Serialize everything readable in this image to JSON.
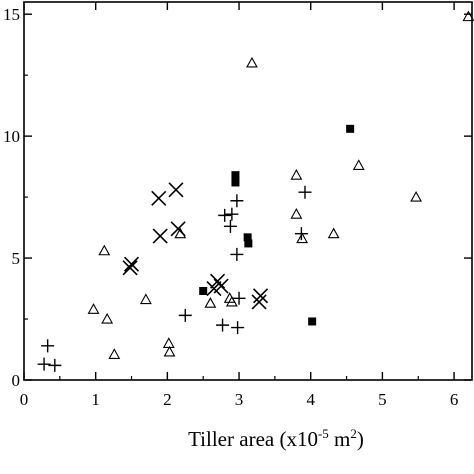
{
  "chart_data": {
    "type": "scatter",
    "title": "",
    "xlabel": "Tiller area (x10",
    "xlabel_exp": "-5",
    "xlabel_unit": " m",
    "xlabel_unit_exp": "2",
    "xlabel_close": ")",
    "ylabel": "",
    "xlim": [
      0,
      6.25
    ],
    "ylim": [
      0,
      15.5
    ],
    "x_ticks": [
      0,
      1,
      2,
      3,
      4,
      5,
      6
    ],
    "y_ticks": [
      0,
      5,
      10,
      15
    ],
    "grid": false,
    "series": [
      {
        "marker": "triangle",
        "points": [
          [
            0.97,
            2.9
          ],
          [
            1.12,
            5.3
          ],
          [
            1.16,
            2.5
          ],
          [
            1.26,
            1.05
          ],
          [
            1.7,
            3.3
          ],
          [
            2.02,
            1.5
          ],
          [
            2.03,
            1.15
          ],
          [
            2.18,
            6.0
          ],
          [
            2.6,
            3.15
          ],
          [
            2.87,
            3.35
          ],
          [
            2.9,
            3.2
          ],
          [
            3.18,
            13.0
          ],
          [
            3.8,
            8.4
          ],
          [
            3.8,
            6.8
          ],
          [
            3.88,
            5.8
          ],
          [
            4.32,
            6.0
          ],
          [
            4.67,
            8.8
          ],
          [
            5.47,
            7.5
          ],
          [
            6.2,
            14.9
          ]
        ]
      },
      {
        "marker": "cross",
        "points": [
          [
            1.48,
            4.6
          ],
          [
            1.5,
            4.75
          ],
          [
            1.88,
            7.45
          ],
          [
            1.9,
            5.9
          ],
          [
            2.12,
            7.8
          ],
          [
            2.15,
            6.2
          ],
          [
            2.65,
            3.75
          ],
          [
            2.7,
            4.05
          ],
          [
            2.75,
            3.85
          ],
          [
            3.28,
            3.2
          ],
          [
            3.3,
            3.45
          ]
        ]
      },
      {
        "marker": "plus",
        "points": [
          [
            0.28,
            0.65
          ],
          [
            0.33,
            1.4
          ],
          [
            0.43,
            0.6
          ],
          [
            2.25,
            2.65
          ],
          [
            2.77,
            2.25
          ],
          [
            2.8,
            6.75
          ],
          [
            2.88,
            6.3
          ],
          [
            2.9,
            6.8
          ],
          [
            2.97,
            7.35
          ],
          [
            2.97,
            5.15
          ],
          [
            2.98,
            2.15
          ],
          [
            3.0,
            3.35
          ],
          [
            3.87,
            6.0
          ],
          [
            3.92,
            7.7
          ]
        ]
      },
      {
        "marker": "square",
        "points": [
          [
            2.5,
            3.65
          ],
          [
            2.95,
            8.4
          ],
          [
            2.95,
            8.1
          ],
          [
            3.12,
            5.85
          ],
          [
            3.13,
            5.6
          ],
          [
            4.02,
            2.4
          ],
          [
            4.55,
            10.3
          ]
        ]
      }
    ]
  }
}
